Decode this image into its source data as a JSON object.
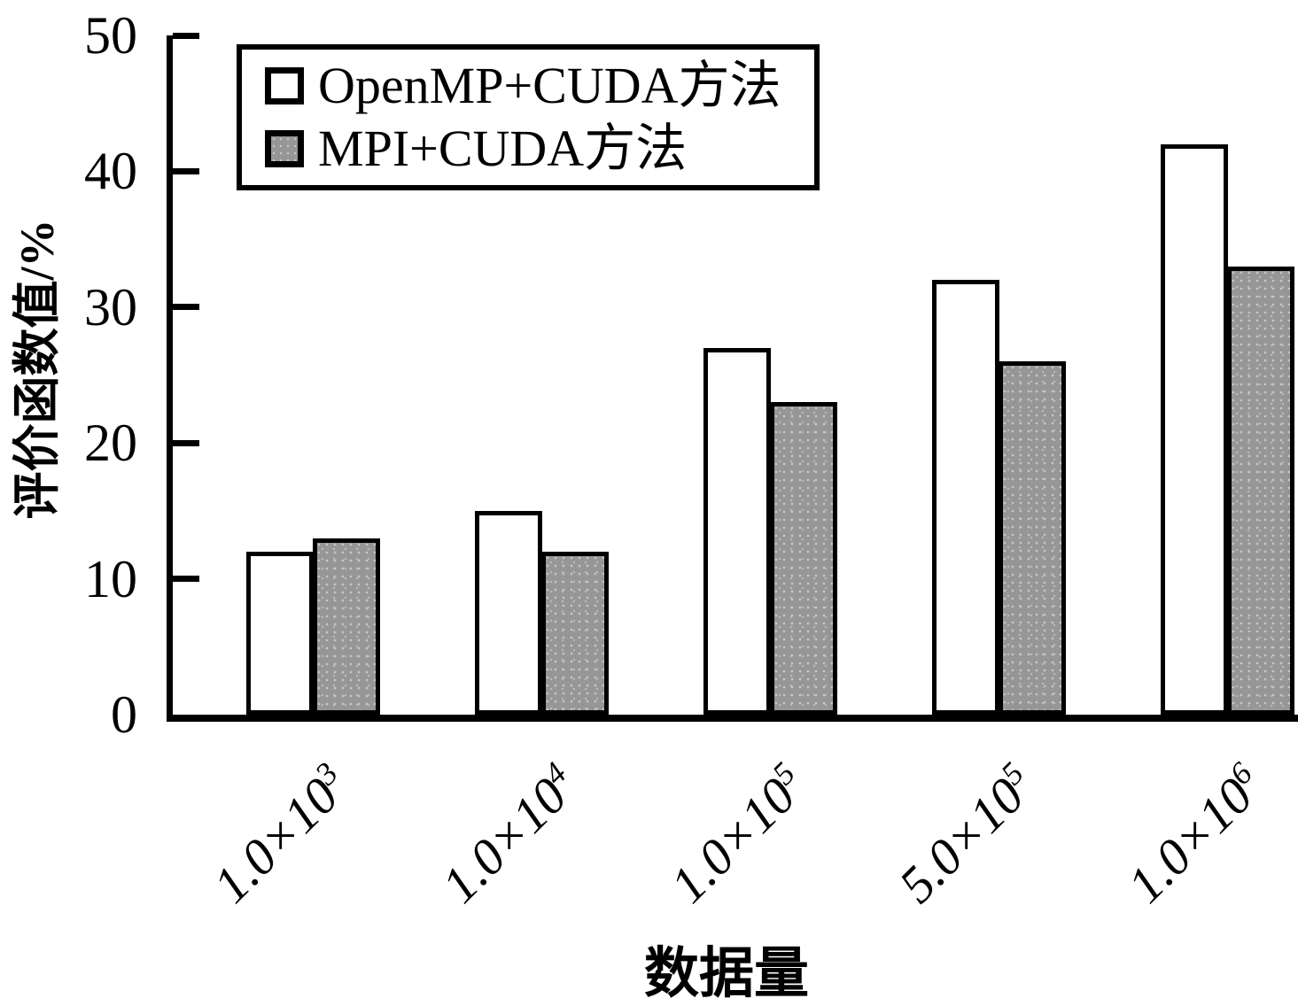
{
  "figure": {
    "background": "#ffffff",
    "ink_color": "#000000"
  },
  "chart_data": {
    "type": "bar",
    "title": "",
    "xlabel": "数据量",
    "ylabel": "评价函数值/%",
    "ylim": [
      0,
      50
    ],
    "yticks": [
      0,
      10,
      20,
      30,
      40,
      50
    ],
    "grid": false,
    "legend_position": "upper-left",
    "bar_outline_color": "#000000",
    "categories": [
      {
        "base": "1.0×10",
        "exp": "3"
      },
      {
        "base": "1.0×10",
        "exp": "4"
      },
      {
        "base": "1.0×10",
        "exp": "5"
      },
      {
        "base": "5.0×10",
        "exp": "5"
      },
      {
        "base": "1.0×10",
        "exp": "6"
      }
    ],
    "series": [
      {
        "name": "OpenMP+CUDA方法",
        "fill": "#ffffff",
        "values": [
          12,
          15,
          27,
          32,
          42
        ]
      },
      {
        "name": "MPI+CUDA方法",
        "fill": "#969696",
        "values": [
          13,
          12,
          23,
          26,
          33
        ]
      }
    ]
  }
}
